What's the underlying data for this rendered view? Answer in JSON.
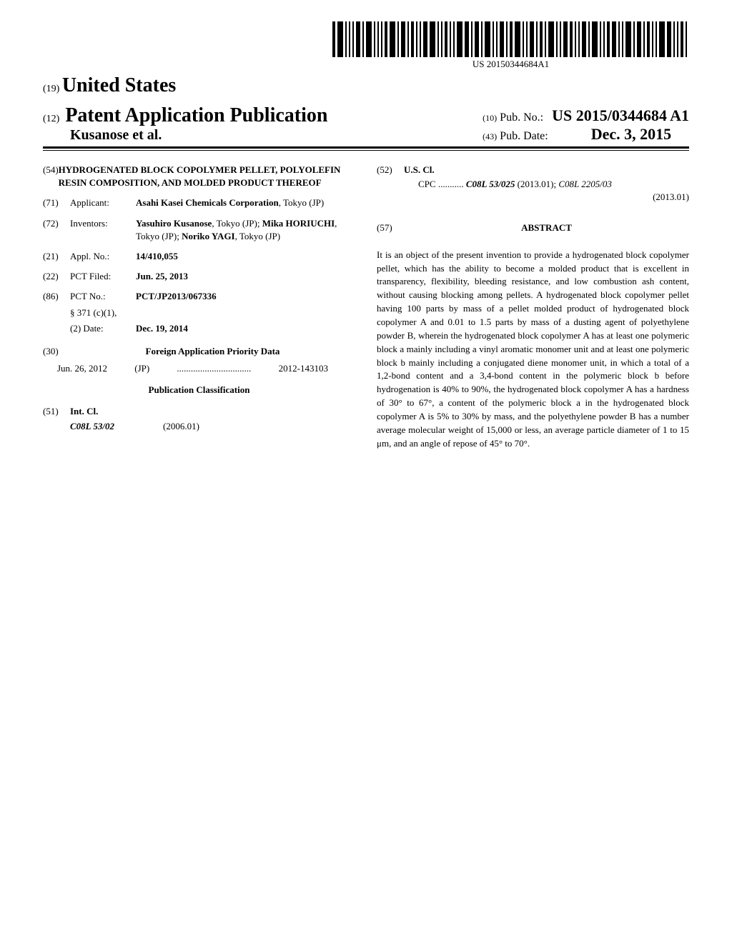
{
  "barcode_label": "US 20150344684A1",
  "header": {
    "country_prefix": "(19)",
    "country": "United States",
    "pub_prefix": "(12)",
    "pub_type": "Patent Application Publication",
    "authors": "Kusanose et al.",
    "pub_no_prefix": "(10)",
    "pub_no_label": "Pub. No.:",
    "pub_no_value": "US 2015/0344684 A1",
    "pub_date_prefix": "(43)",
    "pub_date_label": "Pub. Date:",
    "pub_date_value": "Dec. 3, 2015"
  },
  "left": {
    "title_num": "(54)",
    "title": "HYDROGENATED BLOCK COPOLYMER PELLET, POLYOLEFIN RESIN COMPOSITION, AND MOLDED PRODUCT THEREOF",
    "applicant_num": "(71)",
    "applicant_label": "Applicant:",
    "applicant_value": "Asahi Kasei Chemicals Corporation",
    "applicant_loc": ", Tokyo (JP)",
    "inventors_num": "(72)",
    "inventors_label": "Inventors:",
    "inventors_value": "Yasuhiro Kusanose, Tokyo (JP); Mika HORIUCHI, Tokyo (JP); Noriko YAGI, Tokyo (JP)",
    "appl_num": "(21)",
    "appl_label": "Appl. No.:",
    "appl_value": "14/410,055",
    "pct_filed_num": "(22)",
    "pct_filed_label": "PCT Filed:",
    "pct_filed_value": "Jun. 25, 2013",
    "pct_no_num": "(86)",
    "pct_no_label": "PCT No.:",
    "pct_no_value": "PCT/JP2013/067336",
    "s371_label": "§ 371 (c)(1),",
    "s371_date_label": "(2) Date:",
    "s371_date_value": "Dec. 19, 2014",
    "priority_num": "(30)",
    "priority_head": "Foreign Application Priority Data",
    "priority_date": "Jun. 26, 2012",
    "priority_country": "(JP)",
    "priority_dots": "................................",
    "priority_value": "2012-143103",
    "pub_class_head": "Publication Classification",
    "intcl_num": "(51)",
    "intcl_label": "Int. Cl.",
    "intcl_code": "C08L 53/02",
    "intcl_year": "(2006.01)"
  },
  "right": {
    "uscl_num": "(52)",
    "uscl_label": "U.S. Cl.",
    "cpc_label": "CPC",
    "cpc_dots": "...........",
    "cpc_code1": "C08L 53/025",
    "cpc_year1": "(2013.01);",
    "cpc_code2": "C08L 2205/03",
    "cpc_year2": "(2013.01)",
    "abstract_num": "(57)",
    "abstract_head": "ABSTRACT",
    "abstract_body": "It is an object of the present invention to provide a hydrogenated block copolymer pellet, which has the ability to become a molded product that is excellent in transparency, flexibility, bleeding resistance, and low combustion ash content, without causing blocking among pellets. A hydrogenated block copolymer pellet having 100 parts by mass of a pellet molded product of hydrogenated block copolymer A and 0.01 to 1.5 parts by mass of a dusting agent of polyethylene powder B, wherein the hydrogenated block copolymer A has at least one polymeric block a mainly including a vinyl aromatic monomer unit and at least one polymeric block b mainly including a conjugated diene monomer unit, in which a total of a 1,2-bond content and a 3,4-bond content in the polymeric block b before hydrogenation is 40% to 90%, the hydrogenated block copolymer A has a hardness of 30° to 67°, a content of the polymeric block a in the hydrogenated block copolymer A is 5% to 30% by mass, and the polyethylene powder B has a number average molecular weight of 15,000 or less, an average particle diameter of 1 to 15 μm, and an angle of repose of 45° to 70°."
  },
  "barcode_widths": [
    2,
    4,
    1,
    1,
    1,
    3,
    1,
    4,
    1,
    1,
    1,
    2,
    4,
    1,
    3,
    1,
    2,
    1,
    1,
    3,
    4,
    1,
    1,
    2,
    1,
    1,
    4,
    3,
    1,
    3,
    1,
    4,
    1,
    1,
    3,
    1,
    2,
    4,
    1,
    1,
    3,
    1,
    2,
    1,
    4,
    1,
    1,
    3,
    2,
    1,
    1,
    3,
    1,
    4,
    1,
    1,
    2,
    3,
    1,
    1,
    4,
    1,
    3,
    1,
    2,
    1,
    1,
    4,
    3,
    1,
    1,
    2,
    1
  ]
}
